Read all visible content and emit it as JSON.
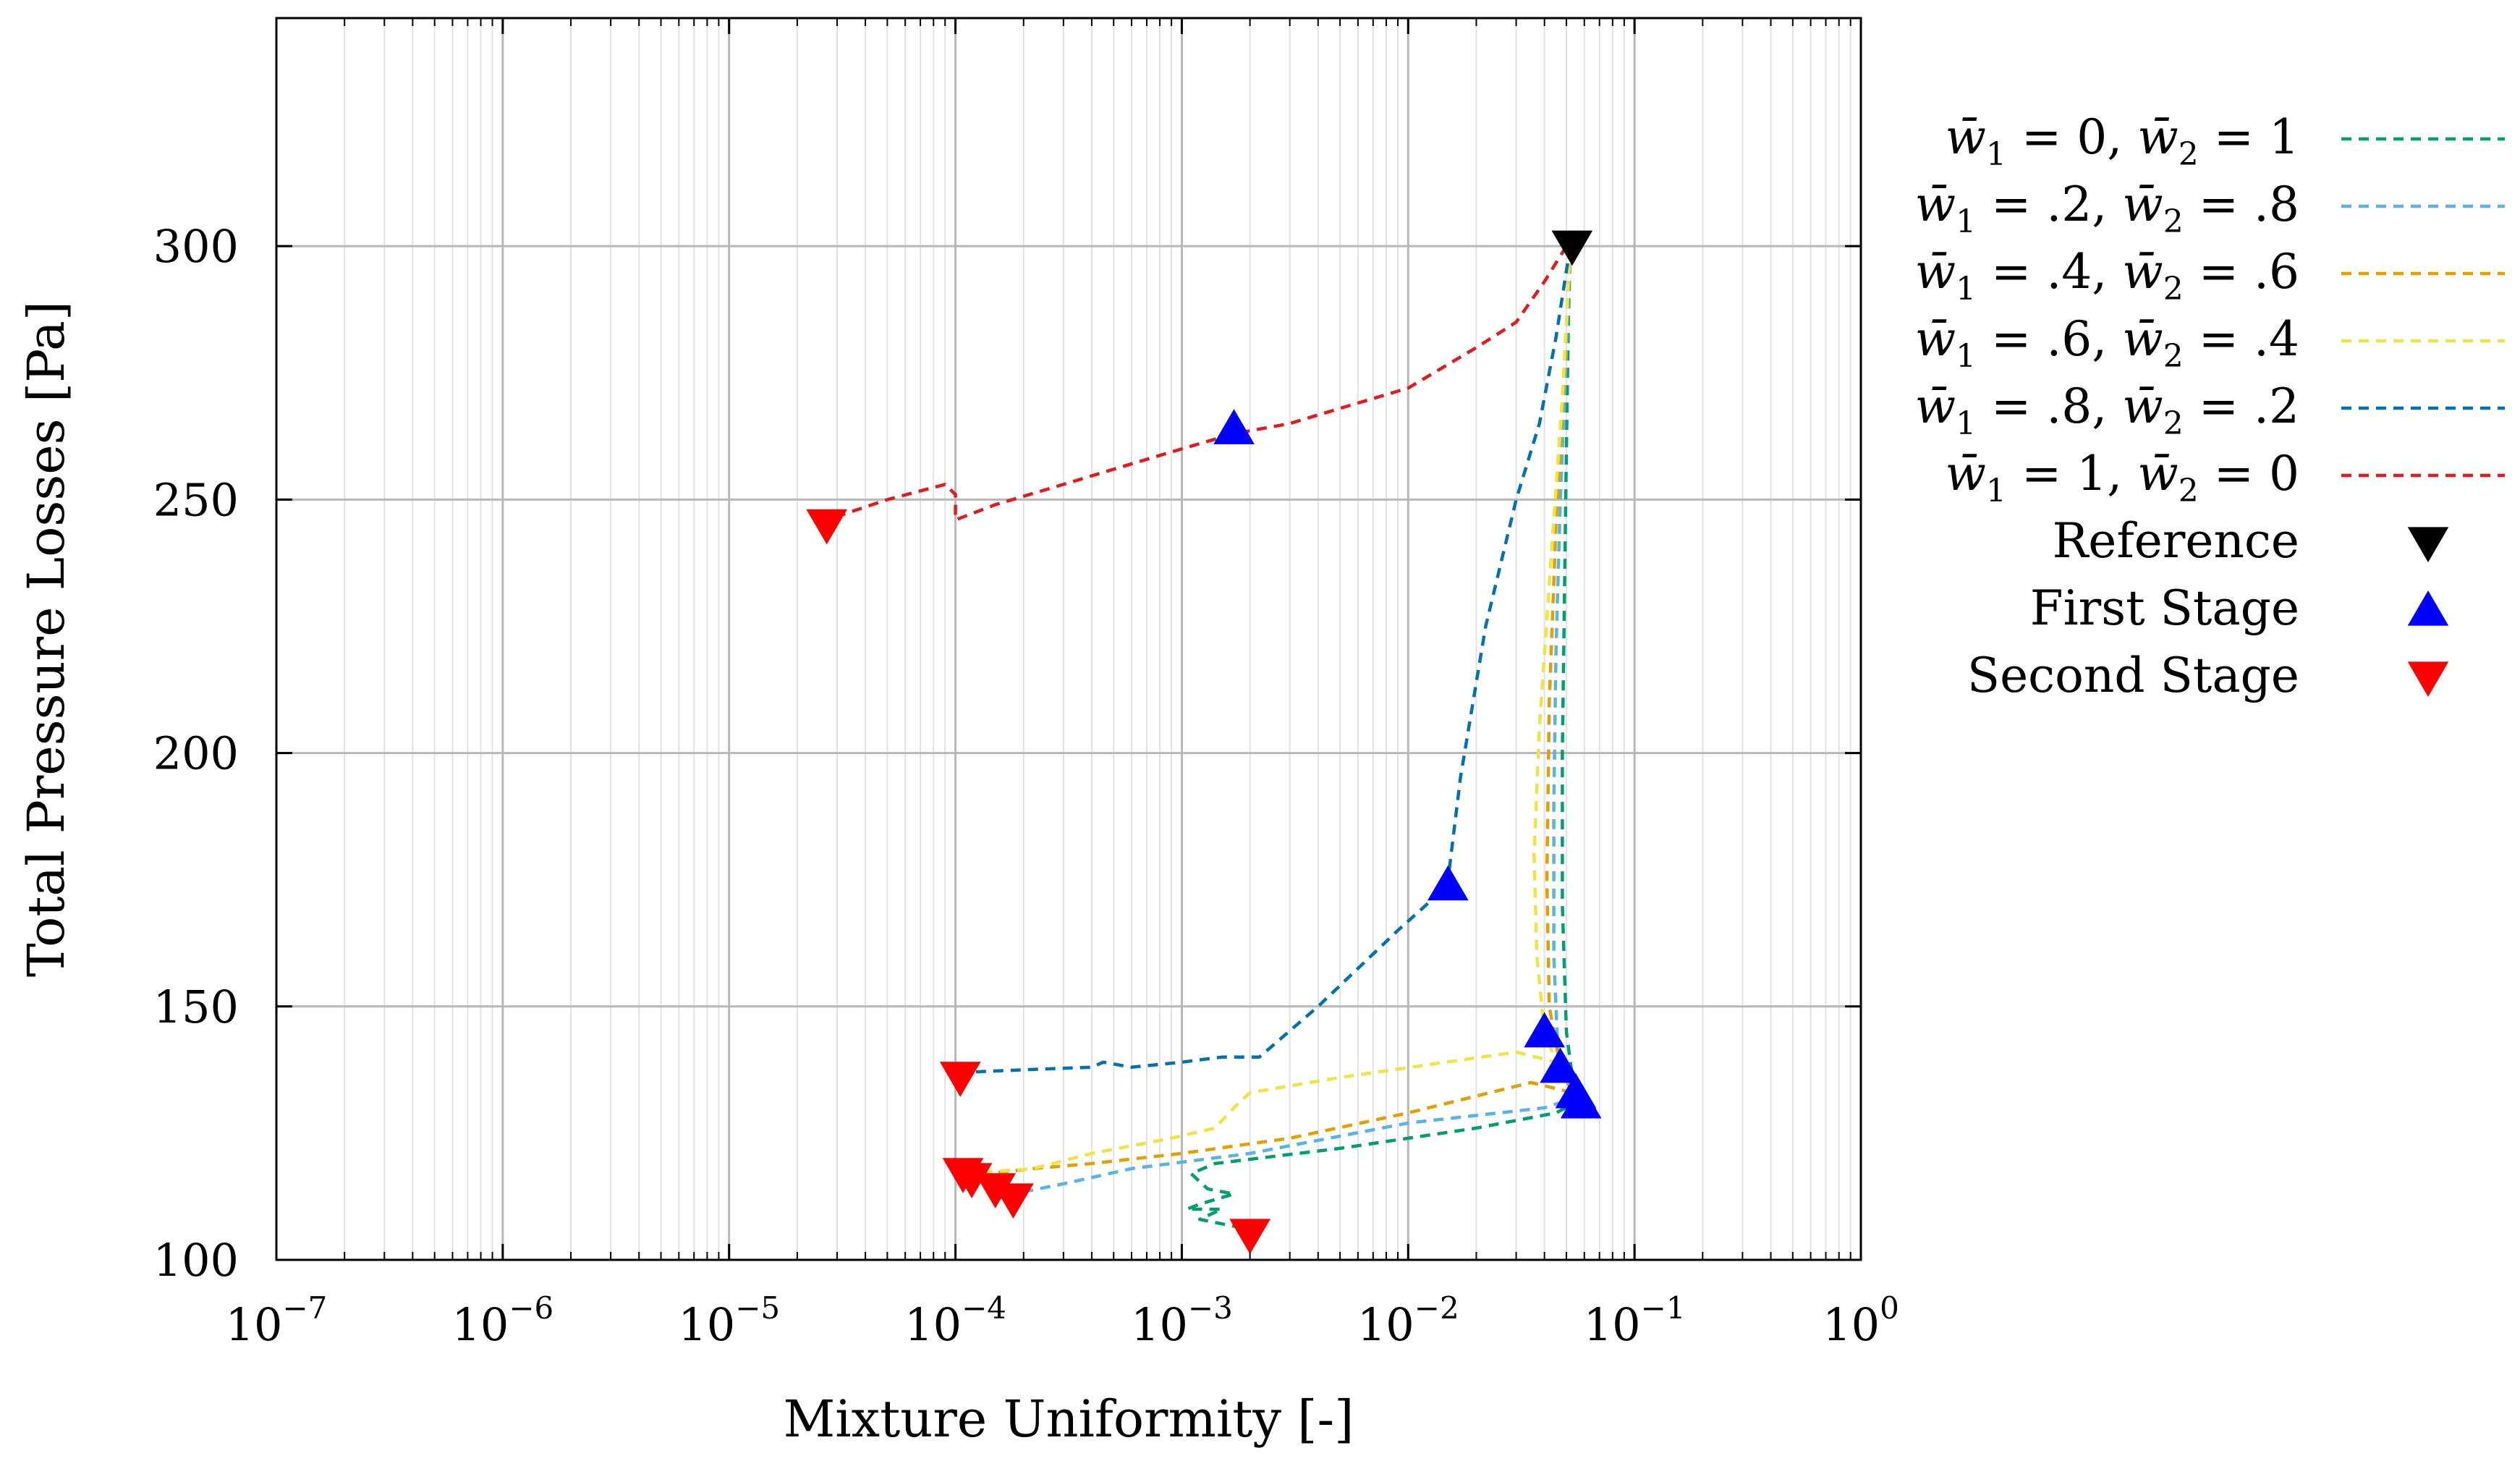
{
  "chart_data": {
    "type": "line",
    "xscale": "log",
    "xlim": [
      1e-07,
      1
    ],
    "ylim": [
      100,
      345
    ],
    "xlabel": "Mixture Uniformity [-]",
    "ylabel": "Total Pressure Losses [Pa]",
    "x_ticks": [
      {
        "base": "10",
        "exp": "−7",
        "value": 1e-07
      },
      {
        "base": "10",
        "exp": "−6",
        "value": 1e-06
      },
      {
        "base": "10",
        "exp": "−5",
        "value": 1e-05
      },
      {
        "base": "10",
        "exp": "−4",
        "value": 0.0001
      },
      {
        "base": "10",
        "exp": "−3",
        "value": 0.001
      },
      {
        "base": "10",
        "exp": "−2",
        "value": 0.01
      },
      {
        "base": "10",
        "exp": "−1",
        "value": 0.1
      },
      {
        "base": "10",
        "exp": "0",
        "value": 1
      }
    ],
    "y_ticks": [
      {
        "label": "100",
        "value": 100
      },
      {
        "label": "150",
        "value": 150
      },
      {
        "label": "200",
        "value": 200
      },
      {
        "label": "250",
        "value": 250
      },
      {
        "label": "300",
        "value": 300
      }
    ],
    "series": [
      {
        "name": "w1=0,w2=1",
        "legend": {
          "w1": "0",
          "w2": "1"
        },
        "color": "#009e73",
        "points": [
          [
            0.052,
            300
          ],
          [
            0.051,
            285
          ],
          [
            0.05,
            260
          ],
          [
            0.049,
            230
          ],
          [
            0.048,
            200
          ],
          [
            0.048,
            170
          ],
          [
            0.05,
            145
          ],
          [
            0.055,
            131
          ],
          [
            0.045,
            129
          ],
          [
            0.02,
            126
          ],
          [
            0.005,
            122
          ],
          [
            0.0014,
            119
          ],
          [
            0.0011,
            117
          ],
          [
            0.0013,
            114
          ],
          [
            0.0017,
            113
          ],
          [
            0.0012,
            111
          ],
          [
            0.00105,
            110
          ],
          [
            0.0015,
            110
          ],
          [
            0.0012,
            108
          ],
          [
            0.002,
            106
          ]
        ]
      },
      {
        "name": "w1=.2,w2=.8",
        "legend": {
          "w1": ".2",
          "w2": ".8"
        },
        "color": "#56b4e9",
        "points": [
          [
            0.052,
            300
          ],
          [
            0.05,
            280
          ],
          [
            0.047,
            250
          ],
          [
            0.045,
            220
          ],
          [
            0.044,
            190
          ],
          [
            0.044,
            160
          ],
          [
            0.046,
            140
          ],
          [
            0.055,
            132
          ],
          [
            0.04,
            130
          ],
          [
            0.01,
            127
          ],
          [
            0.002,
            121
          ],
          [
            0.0006,
            118
          ],
          [
            0.0003,
            115
          ],
          [
            0.00018,
            113
          ],
          [
            0.00015,
            114
          ]
        ]
      },
      {
        "name": "w1=.4,w2=.6",
        "legend": {
          "w1": ".4",
          "w2": ".6"
        },
        "color": "#e69f00",
        "points": [
          [
            0.052,
            300
          ],
          [
            0.049,
            275
          ],
          [
            0.045,
            245
          ],
          [
            0.042,
            210
          ],
          [
            0.041,
            175
          ],
          [
            0.042,
            150
          ],
          [
            0.047,
            138
          ],
          [
            0.053,
            133
          ],
          [
            0.035,
            135
          ],
          [
            0.01,
            129
          ],
          [
            0.003,
            124
          ],
          [
            0.001,
            121
          ],
          [
            0.0004,
            119
          ],
          [
            0.00022,
            118
          ],
          [
            0.00014,
            117
          ]
        ]
      },
      {
        "name": "w1=.6,w2=.4",
        "legend": {
          "w1": ".6",
          "w2": ".4"
        },
        "color": "#f0e442",
        "points": [
          [
            0.052,
            300
          ],
          [
            0.048,
            270
          ],
          [
            0.043,
            240
          ],
          [
            0.038,
            205
          ],
          [
            0.036,
            180
          ],
          [
            0.037,
            160
          ],
          [
            0.04,
            145
          ],
          [
            0.045,
            139
          ],
          [
            0.03,
            141
          ],
          [
            0.005,
            136
          ],
          [
            0.002,
            133
          ],
          [
            0.0017,
            130
          ],
          [
            0.0014,
            126
          ],
          [
            0.0009,
            124
          ],
          [
            0.0004,
            121
          ],
          [
            0.00022,
            118
          ],
          [
            0.00011,
            117
          ]
        ]
      },
      {
        "name": "w1=.8,w2=.2",
        "legend": {
          "w1": ".8",
          "w2": ".2"
        },
        "color": "#0072b2",
        "points": [
          [
            0.052,
            300
          ],
          [
            0.045,
            282
          ],
          [
            0.038,
            265
          ],
          [
            0.03,
            250
          ],
          [
            0.022,
            225
          ],
          [
            0.017,
            195
          ],
          [
            0.015,
            175
          ],
          [
            0.012,
            170
          ],
          [
            0.009,
            165
          ],
          [
            0.004,
            150
          ],
          [
            0.0022,
            140
          ],
          [
            0.0015,
            140
          ],
          [
            0.001,
            139
          ],
          [
            0.0006,
            138
          ],
          [
            0.00045,
            139
          ],
          [
            0.0004,
            138
          ],
          [
            0.0002,
            137.5
          ],
          [
            0.00011,
            137
          ]
        ]
      },
      {
        "name": "w1=1,w2=0",
        "legend": {
          "w1": "1",
          "w2": "0"
        },
        "color": "#e41a1c",
        "points": [
          [
            0.05,
            300
          ],
          [
            0.04,
            293
          ],
          [
            0.03,
            285
          ],
          [
            0.02,
            280
          ],
          [
            0.01,
            272
          ],
          [
            0.005,
            268
          ],
          [
            0.003,
            265
          ],
          [
            0.0017,
            263
          ],
          [
            0.001,
            260
          ],
          [
            0.0005,
            256
          ],
          [
            0.0003,
            253
          ],
          [
            0.00015,
            249
          ],
          [
            0.0001,
            246
          ],
          [
            0.0001,
            251
          ],
          [
            9e-05,
            253
          ],
          [
            5e-05,
            250
          ],
          [
            2.7e-05,
            246
          ]
        ]
      }
    ],
    "markers": {
      "reference": {
        "label": "Reference",
        "color": "#000000",
        "shape": "triangle-down",
        "points": [
          [
            0.053,
            300
          ]
        ]
      },
      "first_stage": {
        "label": "First Stage",
        "color": "#0000ff",
        "shape": "triangle-up",
        "points": [
          [
            0.0017,
            264
          ],
          [
            0.015,
            174
          ],
          [
            0.04,
            145
          ],
          [
            0.047,
            138
          ],
          [
            0.055,
            133
          ],
          [
            0.058,
            131
          ]
        ]
      },
      "second_stage": {
        "label": "Second Stage",
        "color": "#ff0000",
        "shape": "triangle-down",
        "points": [
          [
            2.7e-05,
            245
          ],
          [
            0.000105,
            136
          ],
          [
            0.000108,
            117
          ],
          [
            0.000118,
            116
          ],
          [
            0.00015,
            114
          ],
          [
            0.00018,
            112
          ],
          [
            0.002,
            105
          ]
        ]
      }
    }
  }
}
